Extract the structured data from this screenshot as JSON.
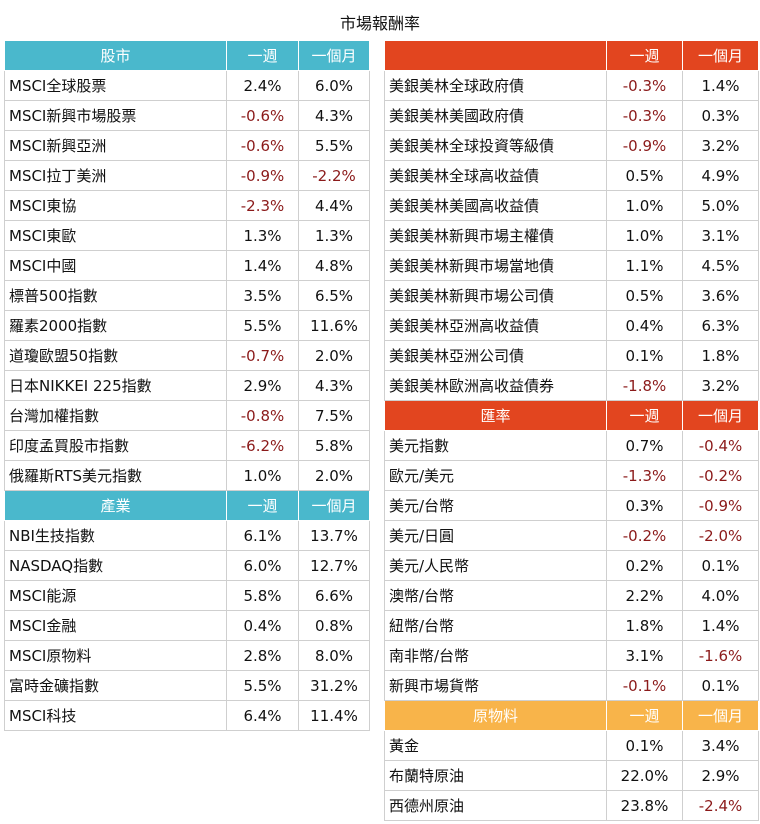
{
  "title": "市場報酬率",
  "colors": {
    "teal": "#4ab8cc",
    "red": "#e2451f",
    "gold": "#f8b44a",
    "negative": "#8b1a1a"
  },
  "stocks": {
    "header": {
      "name": "股市",
      "week": "一週",
      "month": "一個月"
    },
    "rows": [
      {
        "name": "MSCI全球股票",
        "week": "2.4%",
        "month": "6.0%"
      },
      {
        "name": "MSCI新興市場股票",
        "week": "-0.6%",
        "month": "4.3%"
      },
      {
        "name": "MSCI新興亞洲",
        "week": "-0.6%",
        "month": "5.5%"
      },
      {
        "name": "MSCI拉丁美洲",
        "week": "-0.9%",
        "month": "-2.2%"
      },
      {
        "name": "MSCI東協",
        "week": "-2.3%",
        "month": "4.4%"
      },
      {
        "name": "MSCI東歐",
        "week": "1.3%",
        "month": "1.3%"
      },
      {
        "name": "MSCI中國",
        "week": "1.4%",
        "month": "4.8%"
      },
      {
        "name": "標普500指數",
        "week": "3.5%",
        "month": "6.5%"
      },
      {
        "name": "羅素2000指數",
        "week": "5.5%",
        "month": "11.6%"
      },
      {
        "name": "道瓊歐盟50指數",
        "week": "-0.7%",
        "month": "2.0%"
      },
      {
        "name": "日本NIKKEI 225指數",
        "week": "2.9%",
        "month": "4.3%"
      },
      {
        "name": "台灣加權指數",
        "week": "-0.8%",
        "month": "7.5%"
      },
      {
        "name": "印度孟買股市指數",
        "week": "-6.2%",
        "month": "5.8%"
      },
      {
        "name": "俄羅斯RTS美元指數",
        "week": "1.0%",
        "month": "2.0%"
      }
    ]
  },
  "industry": {
    "header": {
      "name": "產業",
      "week": "一週",
      "month": "一個月"
    },
    "rows": [
      {
        "name": "NBI生技指數",
        "week": "6.1%",
        "month": "13.7%"
      },
      {
        "name": "NASDAQ指數",
        "week": "6.0%",
        "month": "12.7%"
      },
      {
        "name": "MSCI能源",
        "week": "5.8%",
        "month": "6.6%"
      },
      {
        "name": "MSCI金融",
        "week": "0.4%",
        "month": "0.8%"
      },
      {
        "name": "MSCI原物料",
        "week": "2.8%",
        "month": "8.0%"
      },
      {
        "name": "富時金礦指數",
        "week": "5.5%",
        "month": "31.2%"
      },
      {
        "name": "MSCI科技",
        "week": "6.4%",
        "month": "11.4%"
      }
    ]
  },
  "bonds": {
    "header": {
      "name": "",
      "week": "一週",
      "month": "一個月"
    },
    "rows": [
      {
        "name": "美銀美林全球政府債",
        "week": "-0.3%",
        "month": "1.4%"
      },
      {
        "name": "美銀美林美國政府債",
        "week": "-0.3%",
        "month": "0.3%"
      },
      {
        "name": "美銀美林全球投資等級債",
        "week": "-0.9%",
        "month": "3.2%"
      },
      {
        "name": "美銀美林全球高收益債",
        "week": "0.5%",
        "month": "4.9%"
      },
      {
        "name": "美銀美林美國高收益債",
        "week": "1.0%",
        "month": "5.0%"
      },
      {
        "name": "美銀美林新興市場主權債",
        "week": "1.0%",
        "month": "3.1%"
      },
      {
        "name": "美銀美林新興市場當地債",
        "week": "1.1%",
        "month": "4.5%"
      },
      {
        "name": "美銀美林新興市場公司債",
        "week": "0.5%",
        "month": "3.6%"
      },
      {
        "name": "美銀美林亞洲高收益債",
        "week": "0.4%",
        "month": "6.3%"
      },
      {
        "name": "美銀美林亞洲公司債",
        "week": "0.1%",
        "month": "1.8%"
      },
      {
        "name": "美銀美林歐洲高收益債券",
        "week": "-1.8%",
        "month": "3.2%"
      }
    ]
  },
  "fx": {
    "header": {
      "name": "匯率",
      "week": "一週",
      "month": "一個月"
    },
    "rows": [
      {
        "name": "美元指數",
        "week": "0.7%",
        "month": "-0.4%"
      },
      {
        "name": "歐元/美元",
        "week": "-1.3%",
        "month": "-0.2%"
      },
      {
        "name": "美元/台幣",
        "week": "0.3%",
        "month": "-0.9%"
      },
      {
        "name": "美元/日圓",
        "week": "-0.2%",
        "month": "-2.0%"
      },
      {
        "name": "美元/人民幣",
        "week": "0.2%",
        "month": "0.1%"
      },
      {
        "name": "澳幣/台幣",
        "week": "2.2%",
        "month": "4.0%"
      },
      {
        "name": "紐幣/台幣",
        "week": "1.8%",
        "month": "1.4%"
      },
      {
        "name": "南非幣/台幣",
        "week": "3.1%",
        "month": "-1.6%"
      },
      {
        "name": "新興市場貨幣",
        "week": "-0.1%",
        "month": "0.1%"
      }
    ]
  },
  "commodities": {
    "header": {
      "name": "原物料",
      "week": "一週",
      "month": "一個月"
    },
    "rows": [
      {
        "name": "黃金",
        "week": "0.1%",
        "month": "3.4%"
      },
      {
        "name": "布蘭特原油",
        "week": "22.0%",
        "month": "2.9%"
      },
      {
        "name": "西德州原油",
        "week": "23.8%",
        "month": "-2.4%"
      }
    ]
  }
}
